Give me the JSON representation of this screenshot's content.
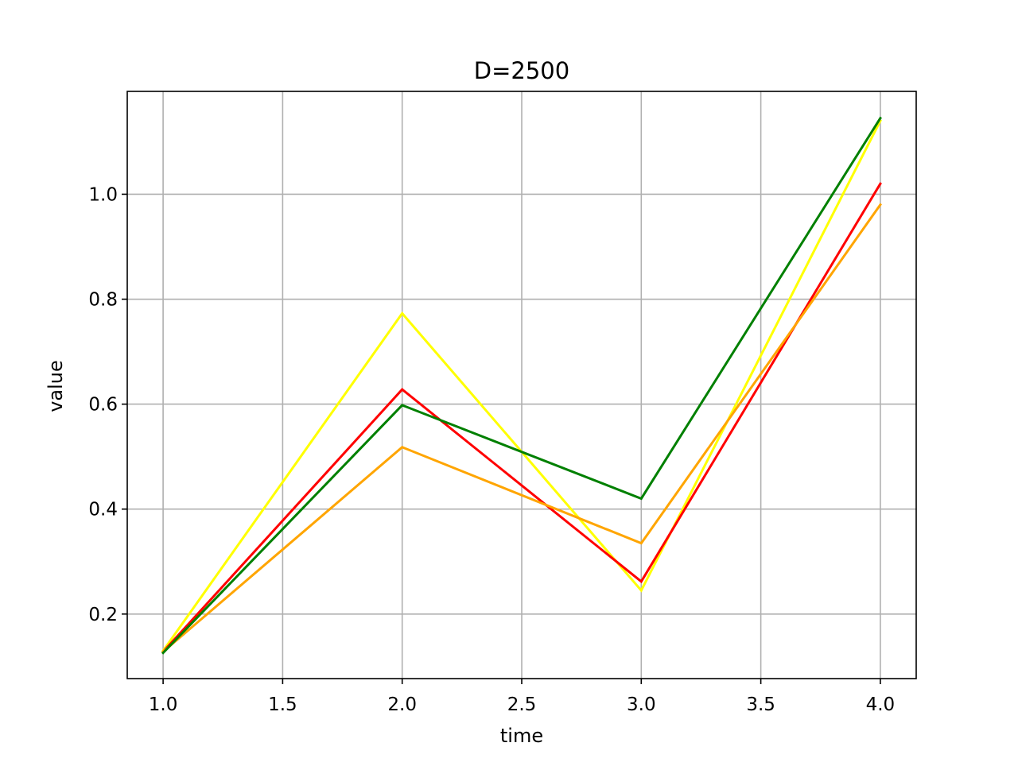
{
  "chart_data": {
    "type": "line",
    "title": "D=2500",
    "xlabel": "time",
    "ylabel": "value",
    "x": [
      1.0,
      2.0,
      3.0,
      4.0
    ],
    "xlim": [
      0.85,
      4.15
    ],
    "ylim": [
      0.077,
      1.196
    ],
    "xticks": [
      "1.0",
      "1.5",
      "2.0",
      "2.5",
      "3.0",
      "3.5",
      "4.0"
    ],
    "yticks": [
      "0.2",
      "0.4",
      "0.6",
      "0.8",
      "1.0"
    ],
    "grid": true,
    "series": [
      {
        "color": "#ffff00",
        "values": [
          0.13,
          0.773,
          0.245,
          1.14
        ]
      },
      {
        "color": "#ff0000",
        "values": [
          0.128,
          0.628,
          0.262,
          1.02
        ]
      },
      {
        "color": "#ffa500",
        "values": [
          0.128,
          0.518,
          0.335,
          0.98
        ]
      },
      {
        "color": "#008000",
        "values": [
          0.126,
          0.598,
          0.42,
          1.145
        ]
      }
    ]
  }
}
